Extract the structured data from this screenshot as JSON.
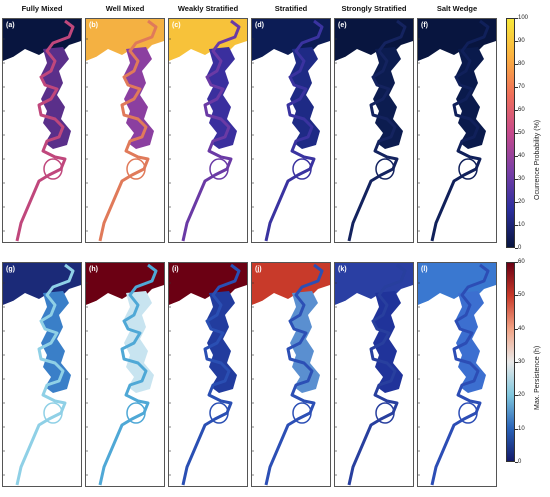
{
  "columns": [
    "Fully Mixed",
    "Well Mixed",
    "Weakly Stratified",
    "Stratified",
    "Strongly Stratified",
    "Salt Wedge"
  ],
  "row1_labels": [
    "(a)",
    "(b)",
    "(c)",
    "(d)",
    "(e)",
    "(f)"
  ],
  "row2_labels": [
    "(g)",
    "(h)",
    "(i)",
    "(j)",
    "(k)",
    "(l)"
  ],
  "colorbar_top": {
    "label": "Ocurrence Probability (%)",
    "ticks": [
      "100",
      "90",
      "80",
      "70",
      "60",
      "50",
      "40",
      "30",
      "20",
      "10",
      "0"
    ],
    "colors": [
      "#f7e83a",
      "#fbb040",
      "#ef6f5a",
      "#c64a8c",
      "#7a3fa6",
      "#2c2f9e",
      "#08153f"
    ]
  },
  "colorbar_bottom": {
    "label": "Max. Persistence (h)",
    "ticks": [
      "60",
      "50",
      "40",
      "30",
      "20",
      "10",
      "0"
    ],
    "colors": [
      "#6b0013",
      "#c83a2a",
      "#f1a385",
      "#e9e9e9",
      "#7fc6dd",
      "#2a63b8",
      "#141b6b"
    ]
  },
  "panel_colors_top": [
    {
      "river": "#c0477c",
      "bay": "#5a2f8a",
      "land": "#08153f"
    },
    {
      "river": "#e07a5a",
      "bay": "#8b3fa0",
      "land": "#f4b142"
    },
    {
      "river": "#6a3aa5",
      "bay": "#3a2f9e",
      "land": "#f7c23a"
    },
    {
      "river": "#3a33a0",
      "bay": "#1e2a85",
      "land": "#0c1c55"
    },
    {
      "river": "#14235f",
      "bay": "#0c1c50",
      "land": "#08153f"
    },
    {
      "river": "#10205a",
      "bay": "#0a1a4c",
      "land": "#08153f"
    }
  ],
  "panel_colors_bottom": [
    {
      "river": "#8fd0e6",
      "bay": "#3a7fc8",
      "land": "#1b2a78"
    },
    {
      "river": "#4fa8d6",
      "bay": "#c8e4f0",
      "land": "#6b0013"
    },
    {
      "river": "#2a4fb3",
      "bay": "#223c9e",
      "land": "#6b0013"
    },
    {
      "river": "#2c4fb5",
      "bay": "#5a8fd0",
      "land": "#c83a2a"
    },
    {
      "river": "#283f9e",
      "bay": "#20339a",
      "land": "#2a3fa3"
    },
    {
      "river": "#2c4db5",
      "bay": "#3c6fd0",
      "land": "#3a78d0"
    }
  ]
}
